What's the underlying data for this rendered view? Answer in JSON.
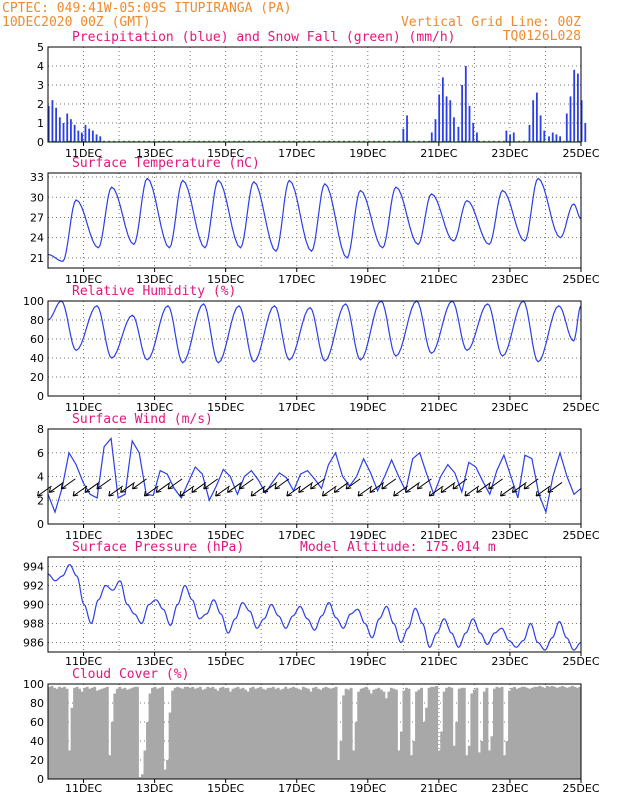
{
  "header": {
    "line1_left": "CPTEC:  049:41W-05:09S  ITUPIRANGA (PA)",
    "line2_left": "10DEC2020 00Z (GMT)",
    "line1_right": "Vertical Grid Line: 00Z",
    "line2_right": "TQ0126L028"
  },
  "colors": {
    "precip": "#2b3fe8",
    "snow": "#1fbf2e",
    "line": "#2b3fe8",
    "cloud": "#a8a8a8",
    "title": "#e2177e",
    "header": "#f08a2c"
  },
  "chart_data": [
    {
      "type": "bar",
      "title": "Precipitation (blue) and Snow Fall (green) (mm/h)",
      "x_ticks": [
        "11DEC",
        "13DEC",
        "15DEC",
        "17DEC",
        "19DEC",
        "21DEC",
        "23DEC",
        "25DEC"
      ],
      "ylim": [
        0,
        5
      ],
      "yticks": [
        0,
        1,
        2,
        3,
        4,
        5
      ],
      "precip_events": [
        {
          "day": 10.02,
          "values": [
            1.9,
            2.2,
            1.8,
            1.3,
            1.0,
            1.5,
            1.2,
            0.9,
            0.6,
            0.4
          ]
        },
        {
          "day": 10.95,
          "values": [
            0.5,
            0.9,
            0.7,
            0.6,
            0.4,
            0.3
          ]
        },
        {
          "day": 20.0,
          "values": [
            0.7,
            1.4
          ]
        },
        {
          "day": 20.8,
          "values": [
            0.5,
            1.2,
            2.5,
            3.4,
            2.4,
            2.2,
            1.3
          ]
        },
        {
          "day": 21.55,
          "values": [
            0.8,
            3.0,
            4.0,
            1.9,
            1.0,
            0.5
          ]
        },
        {
          "day": 22.9,
          "values": [
            0.6,
            0.4,
            0.5
          ]
        },
        {
          "day": 23.55,
          "values": [
            0.9,
            2.2,
            2.6,
            1.4,
            0.6
          ]
        },
        {
          "day": 24.1,
          "values": [
            0.3,
            0.5,
            0.4,
            0.3
          ]
        },
        {
          "day": 24.6,
          "values": [
            1.5,
            2.4,
            3.8,
            3.6,
            2.2,
            1.0
          ]
        }
      ],
      "snow": 0
    },
    {
      "type": "line",
      "title": "Surface Temperature (nC)",
      "x_ticks": [
        "11DEC",
        "13DEC",
        "15DEC",
        "17DEC",
        "19DEC",
        "21DEC",
        "23DEC",
        "25DEC"
      ],
      "ylim": [
        19.5,
        33.6
      ],
      "yticks": [
        21,
        24,
        27,
        30,
        33
      ],
      "daily": [
        {
          "min": 20.5,
          "max": 29.6
        },
        {
          "min": 22.5,
          "max": 31.5
        },
        {
          "min": 23.0,
          "max": 32.8
        },
        {
          "min": 22.5,
          "max": 32.5
        },
        {
          "min": 22.5,
          "max": 32.5
        },
        {
          "min": 22.5,
          "max": 32.3
        },
        {
          "min": 22.0,
          "max": 32.5
        },
        {
          "min": 22.0,
          "max": 32.0
        },
        {
          "min": 21.0,
          "max": 31.0
        },
        {
          "min": 22.5,
          "max": 31.5
        },
        {
          "min": 23.0,
          "max": 30.5
        },
        {
          "min": 23.5,
          "max": 29.5
        },
        {
          "min": 23.0,
          "max": 31.0
        },
        {
          "min": 23.5,
          "max": 32.8
        },
        {
          "min": 24.0,
          "max": 29.0
        }
      ],
      "start": 21.5,
      "end": 26.8
    },
    {
      "type": "line",
      "title": "Relative Humidity (%)",
      "x_ticks": [
        "11DEC",
        "13DEC",
        "15DEC",
        "17DEC",
        "19DEC",
        "21DEC",
        "23DEC",
        "25DEC"
      ],
      "ylim": [
        0,
        100
      ],
      "yticks": [
        0,
        20,
        40,
        60,
        80,
        100
      ],
      "daily": [
        {
          "min": 48,
          "max": 100
        },
        {
          "min": 40,
          "max": 95
        },
        {
          "min": 38,
          "max": 85
        },
        {
          "min": 35,
          "max": 95
        },
        {
          "min": 35,
          "max": 97
        },
        {
          "min": 36,
          "max": 95
        },
        {
          "min": 38,
          "max": 95
        },
        {
          "min": 37,
          "max": 93
        },
        {
          "min": 38,
          "max": 97
        },
        {
          "min": 42,
          "max": 100
        },
        {
          "min": 45,
          "max": 100
        },
        {
          "min": 48,
          "max": 100
        },
        {
          "min": 42,
          "max": 97
        },
        {
          "min": 36,
          "max": 100
        },
        {
          "min": 58,
          "max": 95
        }
      ],
      "start": 80,
      "end": 95
    },
    {
      "type": "line",
      "title": "Surface Wind (m/s)",
      "x_ticks": [
        "11DEC",
        "13DEC",
        "15DEC",
        "17DEC",
        "19DEC",
        "21DEC",
        "23DEC",
        "25DEC"
      ],
      "ylim": [
        0,
        8
      ],
      "yticks": [
        0,
        2,
        4,
        6,
        8
      ],
      "speed": [
        2.5,
        1.0,
        3.0,
        6.0,
        5.0,
        3.5,
        2.5,
        2.2,
        6.5,
        7.2,
        2.2,
        2.5,
        7.0,
        6.0,
        2.5,
        2.4,
        4.5,
        4.2,
        3.0,
        2.2,
        3.5,
        4.8,
        4.2,
        2.0,
        3.2,
        4.6,
        4.0,
        2.5,
        4.0,
        4.5,
        3.7,
        2.6,
        3.5,
        4.3,
        3.9,
        2.8,
        4.2,
        4.5,
        3.8,
        3.0,
        5.0,
        6.0,
        4.0,
        3.2,
        4.0,
        5.5,
        4.3,
        2.8,
        4.0,
        5.4,
        4.0,
        2.8,
        5.5,
        6.0,
        4.2,
        2.5,
        4.0,
        5.0,
        4.3,
        2.7,
        5.2,
        4.8,
        3.6,
        2.5,
        4.5,
        5.8,
        4.0,
        2.2,
        5.8,
        5.5,
        2.5,
        1.0,
        4.0,
        6.0,
        4.0,
        2.5,
        3.0
      ],
      "arrows": 44
    },
    {
      "type": "line",
      "title": "Surface Pressure (hPa)",
      "annotation": "Model Altitude: 175.014 m",
      "x_ticks": [
        "11DEC",
        "13DEC",
        "15DEC",
        "17DEC",
        "19DEC",
        "21DEC",
        "23DEC",
        "25DEC"
      ],
      "ylim": [
        985,
        995
      ],
      "yticks": [
        986,
        988,
        990,
        992,
        994
      ],
      "series": [
        993.2,
        992.5,
        993.0,
        994.2,
        993.0,
        990.0,
        988.0,
        990.5,
        992.0,
        991.5,
        992.5,
        990.0,
        989.0,
        988.0,
        990.0,
        990.5,
        989.5,
        987.8,
        990.0,
        992.0,
        990.5,
        988.5,
        989.0,
        990.5,
        989.0,
        987.0,
        988.5,
        990.2,
        989.3,
        987.5,
        988.5,
        990.0,
        988.8,
        987.5,
        988.8,
        989.8,
        988.5,
        987.3,
        988.8,
        990.2,
        988.6,
        987.5,
        989.0,
        989.5,
        988.0,
        986.5,
        988.5,
        989.8,
        988.0,
        986.0,
        987.5,
        989.6,
        988.0,
        985.5,
        987.0,
        988.5,
        987.0,
        985.5,
        987.0,
        988.5,
        987.0,
        985.8,
        987.0,
        987.5,
        986.2,
        985.5,
        986.2,
        988.0,
        986.0,
        985.0,
        986.5,
        988.2,
        986.5,
        985.0,
        986.0
      ],
      "floor": 985.2
    },
    {
      "type": "area",
      "title": "Cloud Cover (%)",
      "x_ticks": [
        "11DEC",
        "13DEC",
        "15DEC",
        "17DEC",
        "19DEC",
        "21DEC",
        "23DEC",
        "25DEC"
      ],
      "ylim": [
        0,
        100
      ],
      "yticks": [
        0,
        20,
        40,
        60,
        80,
        100
      ],
      "series": [
        97,
        98,
        96,
        95,
        97,
        96,
        97,
        95,
        30,
        75,
        96,
        97,
        95,
        92,
        96,
        97,
        95,
        96,
        97,
        93,
        94,
        95,
        96,
        97,
        25,
        60,
        90,
        95,
        97,
        95,
        96,
        94,
        95,
        96,
        97,
        97,
        2,
        5,
        30,
        60,
        90,
        96,
        97,
        95,
        96,
        97,
        10,
        20,
        70,
        93,
        96,
        97,
        96,
        95,
        97,
        97,
        96,
        97,
        95,
        96,
        97,
        94,
        95,
        97,
        96,
        97,
        95,
        93,
        96,
        97,
        95,
        96,
        92,
        95,
        96,
        97,
        95,
        96,
        94,
        92,
        96,
        97,
        95,
        96,
        97,
        95,
        94,
        96,
        96,
        97,
        95,
        96,
        94,
        95,
        97,
        95,
        96,
        97,
        96,
        95,
        94,
        97,
        96,
        95,
        92,
        96,
        97,
        95,
        94,
        96,
        97,
        96,
        95,
        96,
        97,
        20,
        40,
        88,
        95,
        94,
        96,
        30,
        60,
        92,
        95,
        96,
        97,
        94,
        90,
        94,
        95,
        96,
        94,
        92,
        85,
        92,
        96,
        95,
        94,
        30,
        50,
        93,
        96,
        95,
        25,
        40,
        92,
        94,
        96,
        60,
        75,
        96,
        97,
        97,
        98,
        30,
        50,
        92,
        96,
        97,
        96,
        35,
        60,
        95,
        96,
        96,
        25,
        35,
        90,
        94,
        96,
        28,
        40,
        92,
        96,
        30,
        45,
        95,
        97,
        96,
        97,
        25,
        40,
        93,
        96,
        97,
        95,
        96,
        97,
        97,
        96,
        95,
        96,
        97,
        97,
        98,
        97,
        96,
        98,
        97,
        98,
        97,
        96,
        97,
        98,
        97,
        96,
        97,
        98,
        97,
        96,
        97
      ]
    }
  ]
}
